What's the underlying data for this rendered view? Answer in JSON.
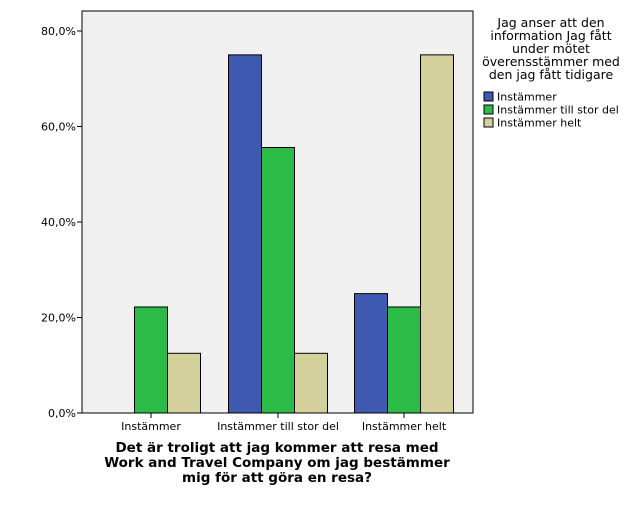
{
  "chart_data": {
    "type": "bar",
    "categories": [
      "Instämmer",
      "Instämmer till stor del",
      "Instämmer helt"
    ],
    "series": [
      {
        "name": "Instämmer",
        "values": [
          0,
          75.0,
          25.0
        ],
        "color": "#3f59b0"
      },
      {
        "name": "Instämmer till stor del",
        "values": [
          22.2,
          55.6,
          22.2
        ],
        "color": "#2dbb48"
      },
      {
        "name": "Instämmer helt",
        "values": [
          12.5,
          12.5,
          75.0
        ],
        "color": "#d4d09c"
      }
    ],
    "y_ticks": [
      "0,0%",
      "20,0%",
      "40,0%",
      "60,0%",
      "80,0%"
    ],
    "ylim": [
      0,
      80
    ],
    "xlabel_lines": [
      "Det är troligt att jag kommer att resa med",
      "Work and Travel Company om jag bestämmer",
      "mig för att göra en resa?"
    ],
    "ylabel": "",
    "legend": {
      "title_lines": [
        "Jag anser att den",
        "information Jag fått",
        "under mötet",
        "överensstämmer med",
        "den jag fått tidigare"
      ],
      "placement": "right"
    },
    "plot_background": "#f0f0f0",
    "grid": false
  }
}
